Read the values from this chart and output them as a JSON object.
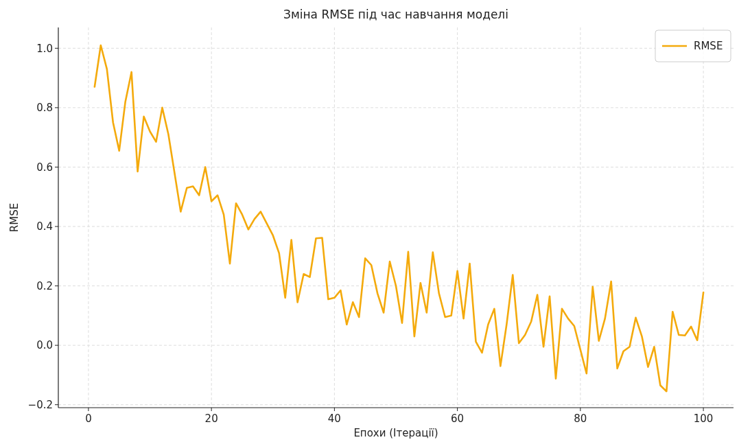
{
  "chart_data": {
    "type": "line",
    "title": "Зміна RMSE під час навчання моделі",
    "xlabel": "Епохи (Ітерації)",
    "ylabel": "RMSE",
    "x": [
      1,
      2,
      3,
      4,
      5,
      6,
      7,
      8,
      9,
      10,
      11,
      12,
      13,
      14,
      15,
      16,
      17,
      18,
      19,
      20,
      21,
      22,
      23,
      24,
      25,
      26,
      27,
      28,
      29,
      30,
      31,
      32,
      33,
      34,
      35,
      36,
      37,
      38,
      39,
      40,
      41,
      42,
      43,
      44,
      45,
      46,
      47,
      48,
      49,
      50,
      51,
      52,
      53,
      54,
      55,
      56,
      57,
      58,
      59,
      60,
      61,
      62,
      63,
      64,
      65,
      66,
      67,
      68,
      69,
      70,
      71,
      72,
      73,
      74,
      75,
      76,
      77,
      78,
      79,
      80,
      81,
      82,
      83,
      84,
      85,
      86,
      87,
      88,
      89,
      90,
      91,
      92,
      93,
      94,
      95,
      96,
      97,
      98,
      99,
      100
    ],
    "series": [
      {
        "name": "RMSE",
        "color": "#f4aa0c",
        "values": [
          0.87,
          1.01,
          0.93,
          0.75,
          0.655,
          0.82,
          0.92,
          0.585,
          0.77,
          0.72,
          0.685,
          0.8,
          0.71,
          0.58,
          0.45,
          0.53,
          0.535,
          0.505,
          0.6,
          0.485,
          0.505,
          0.44,
          0.275,
          0.478,
          0.44,
          0.39,
          0.425,
          0.45,
          0.41,
          0.37,
          0.31,
          0.16,
          0.355,
          0.145,
          0.24,
          0.23,
          0.36,
          0.362,
          0.155,
          0.16,
          0.185,
          0.07,
          0.145,
          0.095,
          0.293,
          0.27,
          0.175,
          0.11,
          0.282,
          0.2,
          0.075,
          0.315,
          0.03,
          0.21,
          0.11,
          0.313,
          0.175,
          0.095,
          0.1,
          0.25,
          0.09,
          0.275,
          0.012,
          -0.025,
          0.07,
          0.123,
          -0.07,
          0.07,
          0.237,
          0.007,
          0.035,
          0.08,
          0.17,
          -0.005,
          0.165,
          -0.112,
          0.123,
          0.09,
          0.065,
          -0.015,
          -0.095,
          0.197,
          0.015,
          0.09,
          0.215,
          -0.078,
          -0.02,
          -0.005,
          0.093,
          0.03,
          -0.073,
          -0.005,
          -0.135,
          -0.155,
          0.113,
          0.035,
          0.033,
          0.063,
          0.017,
          0.178
        ]
      }
    ],
    "xlim": [
      -4.9,
      104.9
    ],
    "xticks": [
      0,
      20,
      40,
      60,
      80,
      100
    ],
    "ylim": [
      -0.21,
      1.07
    ],
    "yticks": [
      {
        "value": -0.2,
        "label": "−0.2"
      },
      {
        "value": 0,
        "label": "0.0"
      },
      {
        "value": 0.2,
        "label": "0.2"
      },
      {
        "value": 0.4,
        "label": "0.4"
      },
      {
        "value": 0.6,
        "label": "0.6"
      },
      {
        "value": 0.8,
        "label": "0.8"
      },
      {
        "value": 1,
        "label": "1.0"
      }
    ],
    "grid": true,
    "legend": "top right",
    "line_style": "solid",
    "marker": "none"
  }
}
